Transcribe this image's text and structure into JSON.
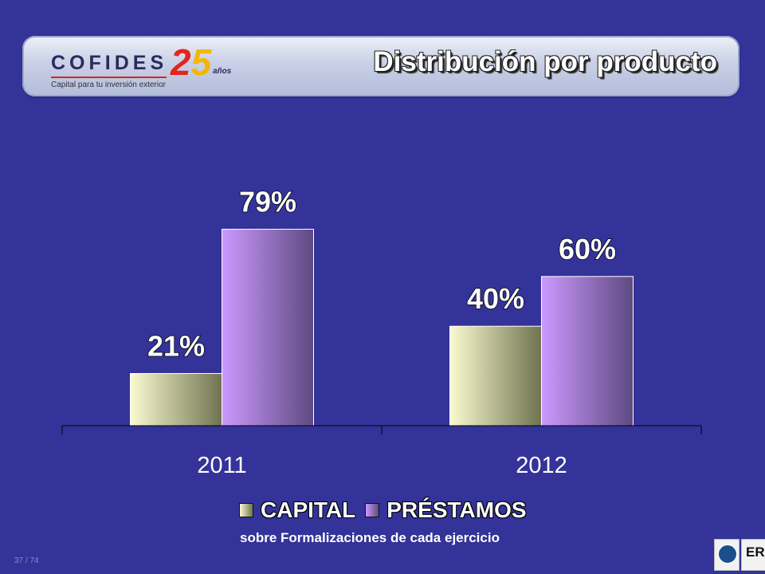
{
  "header": {
    "logo_text": "COFIDES",
    "logo_subtext": "Capital para tu inversión exterior",
    "logo_anniversary_number": "25",
    "logo_anniversary_word": "años",
    "title": "Distribución por producto"
  },
  "chart_data": {
    "type": "bar",
    "categories": [
      "2011",
      "2012"
    ],
    "series": [
      {
        "name": "CAPITAL",
        "values": [
          21,
          40
        ],
        "labels": [
          "21%",
          "40%"
        ],
        "color_light": "#fbfbd0",
        "color_dark": "#6f7350"
      },
      {
        "name": "PRÉSTAMOS",
        "values": [
          79,
          60
        ],
        "labels": [
          "79%",
          "60%"
        ],
        "color_light": "#cc99ff",
        "color_dark": "#5e4a80"
      }
    ],
    "ylim": [
      0,
      100
    ],
    "grid": false,
    "legend": "bottom"
  },
  "footnote": "sobre Formalizaciones de cada ejercicio",
  "page_number": "37 / 74",
  "colors": {
    "background": "#333399",
    "text": "#ffffff",
    "accent_red": "#e4251c",
    "accent_yellow": "#f0b800"
  }
}
